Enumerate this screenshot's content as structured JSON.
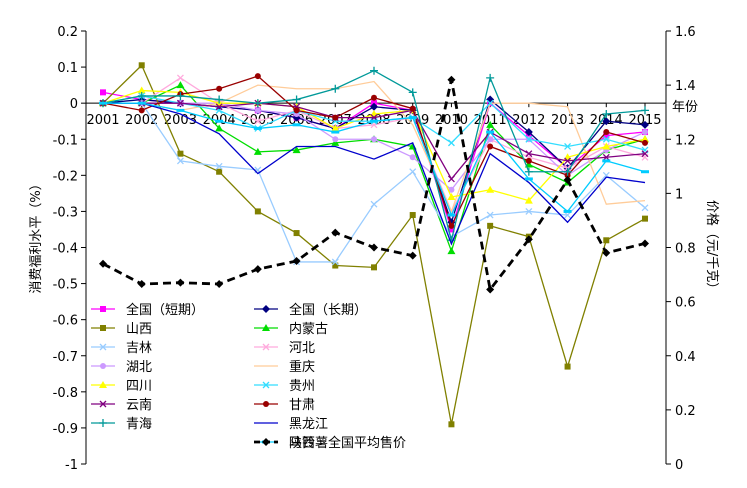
{
  "chart_data": {
    "type": "line",
    "title": "",
    "x": [
      "2001",
      "2002",
      "2003",
      "2004",
      "2005",
      "2006",
      "2007",
      "2008",
      "2009",
      "2010",
      "2011",
      "2012",
      "2013",
      "2014",
      "2015"
    ],
    "x_axis_title": "年份",
    "y_left": {
      "label": "消费福利水平（%）",
      "ylim": [
        -1,
        0.2
      ],
      "ticks": [
        "0.2",
        "0.1",
        "0",
        "-0.1",
        "-0.2",
        "-0.3",
        "-0.4",
        "-0.5",
        "-0.6",
        "-0.7",
        "-0.8",
        "-0.9",
        "-1"
      ]
    },
    "y_right": {
      "label": "价格（元/千克）",
      "ylim": [
        0,
        1.6
      ],
      "ticks": [
        "1.6",
        "1.4",
        "1.2",
        "1",
        "0.8",
        "0.6",
        "0.4",
        "0.2",
        "0"
      ]
    },
    "grid": false,
    "legend_position": "bottom-left",
    "series": [
      {
        "name": "全国（短期）",
        "color": "#ff00ff",
        "marker": "square",
        "axis": "left",
        "values": [
          0.03,
          0.01,
          0.0,
          -0.01,
          -0.02,
          -0.04,
          -0.07,
          0.0,
          -0.02,
          -0.35,
          0.0,
          -0.09,
          -0.18,
          -0.09,
          -0.08
        ]
      },
      {
        "name": "全国（长期）",
        "color": "#000080",
        "marker": "diamond",
        "axis": "left",
        "values": [
          0.0,
          0.01,
          0.0,
          -0.01,
          -0.02,
          -0.04,
          -0.07,
          -0.01,
          -0.02,
          -0.33,
          0.01,
          -0.08,
          -0.18,
          -0.05,
          -0.06
        ]
      },
      {
        "name": "山西",
        "color": "#808000",
        "marker": "square",
        "axis": "left",
        "values": [
          0.0,
          0.105,
          -0.14,
          -0.19,
          -0.3,
          -0.36,
          -0.45,
          -0.455,
          -0.31,
          -0.89,
          -0.34,
          -0.37,
          -0.73,
          -0.38,
          -0.32
        ]
      },
      {
        "name": "内蒙古",
        "color": "#00dd00",
        "marker": "triangle",
        "axis": "left",
        "values": [
          0.0,
          0.0,
          0.05,
          -0.07,
          -0.135,
          -0.13,
          -0.11,
          -0.1,
          -0.12,
          -0.41,
          -0.06,
          -0.17,
          -0.22,
          -0.13,
          -0.1
        ]
      },
      {
        "name": "吉林",
        "color": "#99ccff",
        "marker": "x",
        "axis": "left",
        "values": [
          0.0,
          0.0,
          -0.16,
          -0.175,
          -0.185,
          -0.44,
          -0.44,
          -0.28,
          -0.19,
          -0.37,
          -0.31,
          -0.3,
          -0.31,
          -0.2,
          -0.29
        ]
      },
      {
        "name": "河北",
        "color": "#ffaadd",
        "marker": "x",
        "axis": "left",
        "values": [
          0.0,
          0.0,
          0.07,
          0.0,
          -0.05,
          -0.02,
          -0.07,
          -0.06,
          -0.04,
          -0.3,
          -0.1,
          -0.15,
          -0.18,
          -0.12,
          -0.15
        ]
      },
      {
        "name": "湖北",
        "color": "#cc99ff",
        "marker": "circle",
        "axis": "left",
        "values": [
          0.0,
          0.0,
          0.0,
          0.0,
          -0.02,
          -0.03,
          -0.1,
          -0.1,
          -0.15,
          -0.24,
          -0.1,
          -0.1,
          -0.2,
          -0.13,
          -0.08
        ]
      },
      {
        "name": "重庆",
        "color": "#ffcc99",
        "marker": "line",
        "axis": "left",
        "values": [
          0.0,
          0.0,
          -0.02,
          0.0,
          0.05,
          0.04,
          0.04,
          0.06,
          -0.06,
          -0.3,
          0.0,
          0.0,
          -0.01,
          -0.28,
          -0.27
        ]
      },
      {
        "name": "四川",
        "color": "#ffff00",
        "marker": "triangle",
        "axis": "left",
        "values": [
          0.0,
          0.035,
          0.03,
          0.0,
          0.0,
          -0.01,
          -0.07,
          -0.03,
          -0.02,
          -0.26,
          -0.24,
          -0.27,
          -0.15,
          -0.12,
          -0.1
        ]
      },
      {
        "name": "贵州",
        "color": "#33ddff",
        "marker": "x",
        "axis": "left",
        "values": [
          0.0,
          0.02,
          0.0,
          -0.02,
          -0.07,
          -0.02,
          -0.05,
          -0.05,
          -0.04,
          -0.11,
          0.0,
          -0.1,
          -0.12,
          -0.1,
          -0.13
        ]
      },
      {
        "name": "云南",
        "color": "#800080",
        "marker": "x",
        "axis": "left",
        "values": [
          0.0,
          0.0,
          0.0,
          -0.01,
          0.0,
          -0.01,
          -0.04,
          -0.04,
          -0.02,
          -0.21,
          -0.08,
          -0.14,
          -0.16,
          -0.15,
          -0.14
        ]
      },
      {
        "name": "甘肃",
        "color": "#990000",
        "marker": "circle",
        "axis": "left",
        "values": [
          0.0,
          -0.02,
          0.025,
          0.04,
          0.075,
          -0.02,
          -0.04,
          0.015,
          -0.015,
          -0.34,
          -0.12,
          -0.16,
          -0.2,
          -0.08,
          -0.11
        ]
      },
      {
        "name": "青海",
        "color": "#009999",
        "marker": "plus",
        "axis": "left",
        "values": [
          0.0,
          0.02,
          0.02,
          0.01,
          0.0,
          0.01,
          0.04,
          0.09,
          0.03,
          -0.38,
          0.07,
          -0.19,
          -0.19,
          -0.03,
          -0.02
        ]
      },
      {
        "name": "黑龙江",
        "color": "#0000cc",
        "marker": "line",
        "axis": "left",
        "values": [
          0.0,
          0.0,
          -0.03,
          -0.085,
          -0.195,
          -0.12,
          -0.12,
          -0.155,
          -0.11,
          -0.39,
          -0.14,
          -0.22,
          -0.33,
          -0.205,
          -0.22
        ]
      },
      {
        "name": "陕西",
        "color": "#00ccff",
        "marker": "dash",
        "axis": "left",
        "values": [
          0.0,
          0.0,
          -0.02,
          -0.05,
          -0.07,
          -0.06,
          -0.08,
          -0.05,
          -0.04,
          -0.31,
          -0.08,
          -0.21,
          -0.3,
          -0.16,
          -0.19
        ]
      },
      {
        "name": "马铃薯全国平均售价",
        "color": "#000000",
        "marker": "diamond",
        "dashed": true,
        "axis": "right",
        "values": [
          0.74,
          0.665,
          0.67,
          0.665,
          0.72,
          0.75,
          0.855,
          0.8,
          0.77,
          1.42,
          0.645,
          0.83,
          1.05,
          0.78,
          0.815
        ]
      }
    ]
  }
}
